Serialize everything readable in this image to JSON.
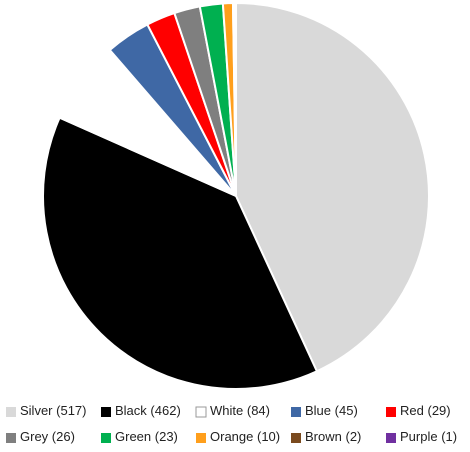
{
  "chart_data": {
    "type": "pie",
    "categories": [
      "Silver",
      "Black",
      "White",
      "Blue",
      "Red",
      "Grey",
      "Green",
      "Orange",
      "Brown",
      "Purple"
    ],
    "values": [
      517,
      462,
      84,
      45,
      29,
      26,
      23,
      10,
      2,
      1
    ],
    "value_labels": [
      "(517)",
      "(462)",
      "(84)",
      "(45)",
      "(29)",
      "(26)",
      "(23)",
      "(10)",
      "(2)",
      "(1)"
    ],
    "colors": [
      "#d9d9d9",
      "#000000",
      "#ffffff",
      "#3f68a5",
      "#ff0000",
      "#7f7f7f",
      "#00b050",
      "#ff9f1c",
      "#7a4a1e",
      "#7030a0"
    ],
    "legend": "bottom"
  }
}
